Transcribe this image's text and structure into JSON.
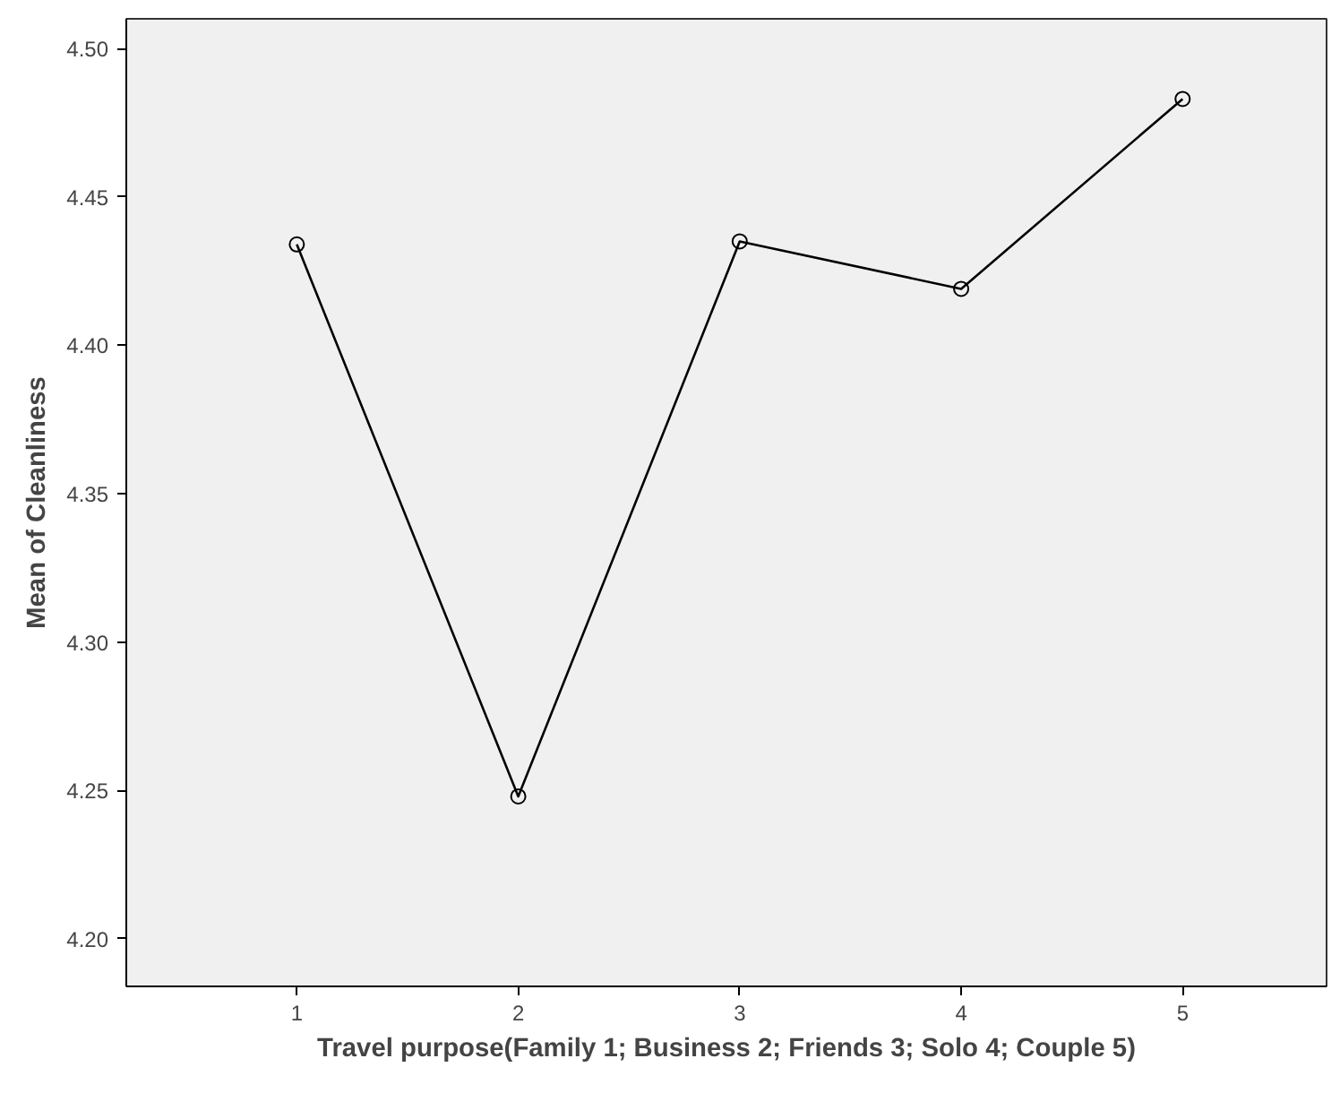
{
  "chart_data": {
    "type": "line",
    "xlabel": "Travel purpose(Family 1; Business 2; Friends 3; Solo 4; Couple 5)",
    "ylabel": "Mean of Cleanliness",
    "x": [
      1,
      2,
      3,
      4,
      5
    ],
    "series": [
      {
        "color": "#000000",
        "values": [
          4.434,
          4.248,
          4.435,
          4.419,
          4.483
        ]
      }
    ],
    "xlim": [
      0.23,
      5.65
    ],
    "xticks": [
      1,
      2,
      3,
      4,
      5
    ],
    "ylim": [
      4.184,
      4.51
    ],
    "yticks": [
      {
        "value": 4.2,
        "label": "4.20"
      },
      {
        "value": 4.25,
        "label": "4.25"
      },
      {
        "value": 4.3,
        "label": "4.30"
      },
      {
        "value": 4.35,
        "label": "4.35"
      },
      {
        "value": 4.4,
        "label": "4.40"
      },
      {
        "value": 4.45,
        "label": "4.45"
      },
      {
        "value": 4.5,
        "label": "4.50"
      }
    ],
    "grid": false,
    "marker": "circle",
    "line_style": "solid"
  }
}
